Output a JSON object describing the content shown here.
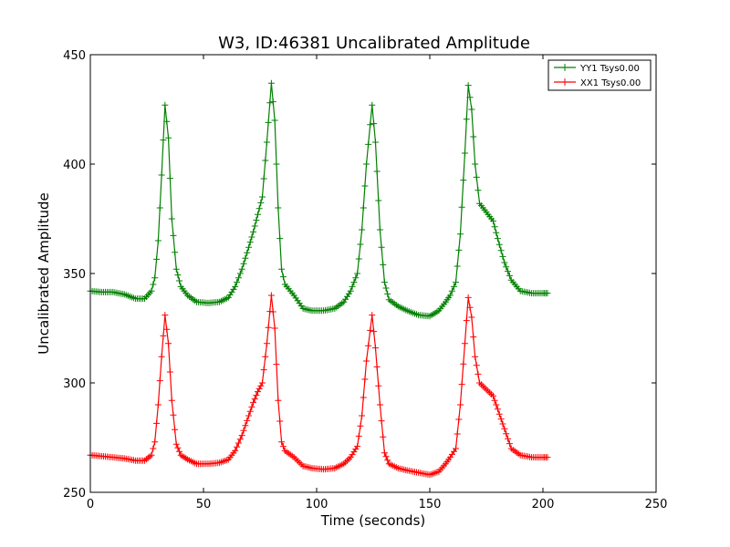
{
  "chart_data": {
    "type": "line",
    "title": "W3, ID:46381 Uncalibrated Amplitude",
    "xlabel": "Time (seconds)",
    "ylabel": "Uncalibrated Amplitude",
    "xlim": [
      0,
      250
    ],
    "ylim": [
      250,
      450
    ],
    "xticks": [
      0,
      50,
      100,
      150,
      200,
      250
    ],
    "yticks": [
      250,
      300,
      350,
      400,
      450
    ],
    "grid": false,
    "legend_position": "top-right",
    "marker": "+",
    "series": [
      {
        "name": "YY1 Tsys0.00",
        "color": "#008000",
        "points": [
          [
            0,
            342
          ],
          [
            5,
            341.5
          ],
          [
            10,
            341.5
          ],
          [
            15,
            340.5
          ],
          [
            20,
            338.5
          ],
          [
            24,
            338.5
          ],
          [
            27,
            342
          ],
          [
            28.5,
            348
          ],
          [
            30,
            365
          ],
          [
            31.5,
            395
          ],
          [
            33,
            427
          ],
          [
            34.5,
            412
          ],
          [
            36,
            375
          ],
          [
            38,
            352
          ],
          [
            40,
            344
          ],
          [
            43,
            340
          ],
          [
            47,
            337
          ],
          [
            52,
            336.5
          ],
          [
            57,
            337
          ],
          [
            61,
            339
          ],
          [
            64,
            344
          ],
          [
            67,
            352
          ],
          [
            70,
            362
          ],
          [
            72,
            369
          ],
          [
            74,
            377
          ],
          [
            76,
            385
          ],
          [
            78,
            410
          ],
          [
            80,
            437
          ],
          [
            81.5,
            420
          ],
          [
            83,
            380
          ],
          [
            84.5,
            352
          ],
          [
            86,
            345
          ],
          [
            90,
            340
          ],
          [
            94,
            334
          ],
          [
            98,
            333
          ],
          [
            103,
            333
          ],
          [
            108,
            334
          ],
          [
            112,
            337
          ],
          [
            115,
            342
          ],
          [
            118,
            350
          ],
          [
            120,
            370
          ],
          [
            122,
            400
          ],
          [
            124.5,
            427
          ],
          [
            126,
            410
          ],
          [
            128,
            370
          ],
          [
            130,
            346
          ],
          [
            132,
            338
          ],
          [
            136,
            335
          ],
          [
            140,
            333
          ],
          [
            145,
            331
          ],
          [
            150,
            330.5
          ],
          [
            154,
            333
          ],
          [
            157,
            337
          ],
          [
            159,
            340
          ],
          [
            161.5,
            346
          ],
          [
            163.5,
            368
          ],
          [
            165.5,
            405
          ],
          [
            167,
            436
          ],
          [
            168.5,
            425
          ],
          [
            170,
            400
          ],
          [
            172,
            382
          ],
          [
            175,
            378
          ],
          [
            178,
            374
          ],
          [
            180,
            366
          ],
          [
            183,
            355
          ],
          [
            186,
            347
          ],
          [
            190,
            342
          ],
          [
            195,
            341
          ],
          [
            200,
            341
          ],
          [
            202,
            341
          ]
        ]
      },
      {
        "name": "XX1 Tsys0.00",
        "color": "#ff0000",
        "points": [
          [
            0,
            267
          ],
          [
            5,
            266.5
          ],
          [
            10,
            266
          ],
          [
            15,
            265.5
          ],
          [
            20,
            264.5
          ],
          [
            24,
            264.5
          ],
          [
            27,
            267
          ],
          [
            28.5,
            273
          ],
          [
            30,
            290
          ],
          [
            31.5,
            312
          ],
          [
            33,
            331
          ],
          [
            34.5,
            318
          ],
          [
            36,
            292
          ],
          [
            38,
            272
          ],
          [
            40,
            267
          ],
          [
            43,
            265
          ],
          [
            47,
            263
          ],
          [
            52,
            263
          ],
          [
            57,
            263.5
          ],
          [
            61,
            265
          ],
          [
            64,
            269
          ],
          [
            67,
            276
          ],
          [
            70,
            285
          ],
          [
            72,
            291
          ],
          [
            74,
            296
          ],
          [
            76,
            300
          ],
          [
            78,
            318
          ],
          [
            80,
            340
          ],
          [
            81.5,
            325
          ],
          [
            83,
            292
          ],
          [
            84.5,
            273
          ],
          [
            86,
            269
          ],
          [
            90,
            266
          ],
          [
            94,
            262
          ],
          [
            98,
            261
          ],
          [
            103,
            260.5
          ],
          [
            108,
            261
          ],
          [
            112,
            263
          ],
          [
            115,
            266
          ],
          [
            118,
            271
          ],
          [
            120,
            285
          ],
          [
            122,
            310
          ],
          [
            124.5,
            331
          ],
          [
            126,
            316
          ],
          [
            128,
            290
          ],
          [
            130,
            268
          ],
          [
            132,
            263
          ],
          [
            136,
            261
          ],
          [
            140,
            260
          ],
          [
            145,
            259
          ],
          [
            150,
            258
          ],
          [
            154,
            259.5
          ],
          [
            157,
            263
          ],
          [
            159,
            266
          ],
          [
            161.5,
            270
          ],
          [
            163.5,
            290
          ],
          [
            165.5,
            318
          ],
          [
            167,
            339
          ],
          [
            168.5,
            330
          ],
          [
            170,
            312
          ],
          [
            172,
            300
          ],
          [
            175,
            297
          ],
          [
            178,
            294
          ],
          [
            180,
            288
          ],
          [
            183,
            279
          ],
          [
            186,
            270
          ],
          [
            190,
            267
          ],
          [
            195,
            266
          ],
          [
            200,
            266
          ],
          [
            202,
            266
          ]
        ]
      }
    ]
  }
}
